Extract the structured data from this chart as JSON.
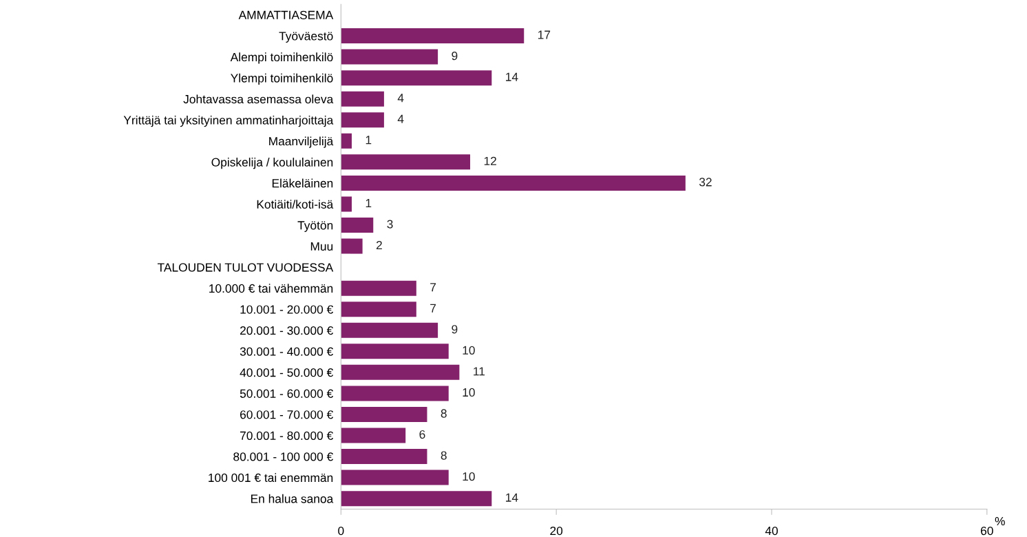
{
  "chart_data": {
    "type": "bar",
    "orientation": "horizontal",
    "xlabel": "%",
    "categories": [
      "AMMATTIASEMA",
      "Työväestö",
      "Alempi toimihenkilö",
      "Ylempi toimihenkilö",
      "Johtavassa asemassa oleva",
      "Yrittäjä tai yksityinen ammatinharjoittaja",
      "Maanviljelijä",
      "Opiskelija / koululainen",
      "Eläkeläinen",
      "Kotiäiti/koti-isä",
      "Työtön",
      "Muu",
      "TALOUDEN TULOT VUODESSA",
      "10.000 € tai vähemmän",
      "10.001 - 20.000 €",
      "20.001 - 30.000 €",
      "30.001 - 40.000 €",
      "40.001 - 50.000 €",
      "50.001 - 60.000 €",
      "60.001 - 70.000 €",
      "70.001 - 80.000 €",
      "80.001 - 100 000 €",
      "100 001 € tai enemmän",
      "En halua sanoa"
    ],
    "values": [
      null,
      17,
      9,
      14,
      4,
      4,
      1,
      12,
      32,
      1,
      3,
      2,
      null,
      7,
      7,
      9,
      10,
      11,
      10,
      8,
      6,
      8,
      10,
      14
    ],
    "color": "#84216b",
    "xlim": [
      0,
      60
    ],
    "xticks": [
      0,
      20,
      40,
      60
    ],
    "data_labels": true,
    "grid": false,
    "legend": false
  }
}
